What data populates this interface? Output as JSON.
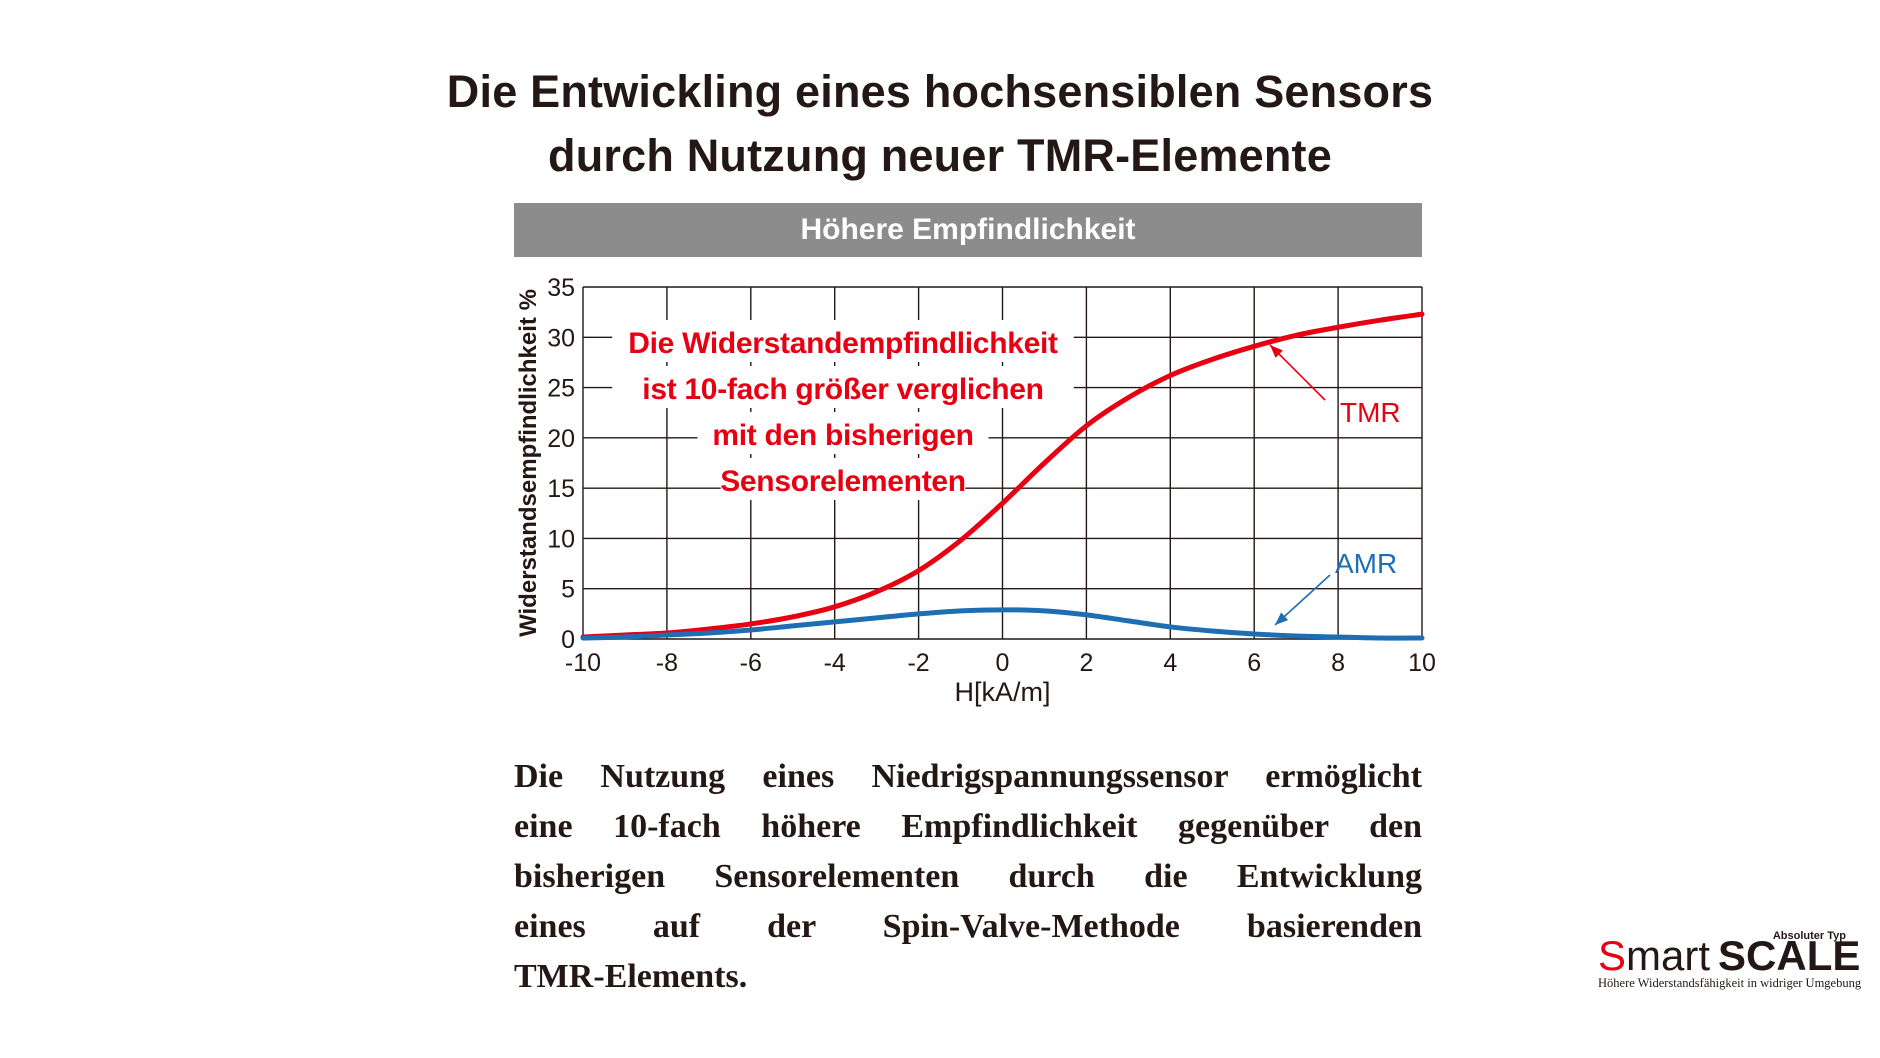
{
  "title": {
    "line1": "Die Entwickling eines hochsensiblen Sensors",
    "line2": "durch Nutzung neuer TMR-Elemente"
  },
  "banner": "Höhere Empfindlichkeit",
  "chart_data": {
    "type": "line",
    "xlabel": "H[kA/m]",
    "ylabel": "Widerstandsempfindlichkeit %",
    "xlim": [
      -10,
      10
    ],
    "ylim": [
      0,
      35
    ],
    "x_ticks": [
      "-10",
      "-8",
      "-6",
      "-4",
      "-2",
      "0",
      "2",
      "4",
      "6",
      "8",
      "10"
    ],
    "y_ticks": [
      "0",
      "5",
      "10",
      "15",
      "20",
      "25",
      "30",
      "35"
    ],
    "grid": true,
    "colors": {
      "TMR": "#e60012",
      "AMR": "#1e6eb4",
      "grid": "#231815"
    },
    "annotation": [
      "Die Widerstandempfindlichkeit",
      "ist 10-fach größer verglichen",
      "mit den bisherigen",
      "Sensorelementen"
    ],
    "series": [
      {
        "name": "TMR",
        "x": [
          -10,
          -9,
          -8,
          -7,
          -6,
          -5,
          -4,
          -3,
          -2,
          -1,
          0,
          1,
          2,
          3,
          4,
          5,
          6,
          7,
          8,
          9,
          10
        ],
        "values": [
          0.2,
          0.4,
          0.6,
          1.0,
          1.5,
          2.2,
          3.2,
          4.7,
          6.8,
          9.8,
          13.5,
          17.5,
          21.2,
          24.0,
          26.2,
          27.8,
          29.1,
          30.2,
          31.0,
          31.7,
          32.3
        ]
      },
      {
        "name": "AMR",
        "x": [
          -10,
          -9,
          -8,
          -7,
          -6,
          -5,
          -4,
          -3,
          -2,
          -1,
          0,
          1,
          2,
          3,
          4,
          5,
          6,
          7,
          8,
          9,
          10
        ],
        "values": [
          0.1,
          0.2,
          0.4,
          0.6,
          0.9,
          1.3,
          1.7,
          2.1,
          2.5,
          2.8,
          2.9,
          2.8,
          2.4,
          1.8,
          1.2,
          0.8,
          0.5,
          0.3,
          0.2,
          0.1,
          0.1
        ]
      }
    ]
  },
  "paragraph": [
    "Die Nutzung eines Niedrigspannungssensor ermöglicht",
    "eine 10-fach höhere Empfindlichkeit gegenüber den",
    "bisherigen Sensorelementen durch die Entwicklung",
    "eines auf der Spin-Valve-Methode basierenden",
    "TMR-Elements."
  ],
  "logo": {
    "s": "S",
    "mart": "mart",
    "scale": "SCALE",
    "superscript": "Absoluter Typ",
    "tagline": "Höhere Widerstandsfähigkeit in widriger Umgebung"
  }
}
